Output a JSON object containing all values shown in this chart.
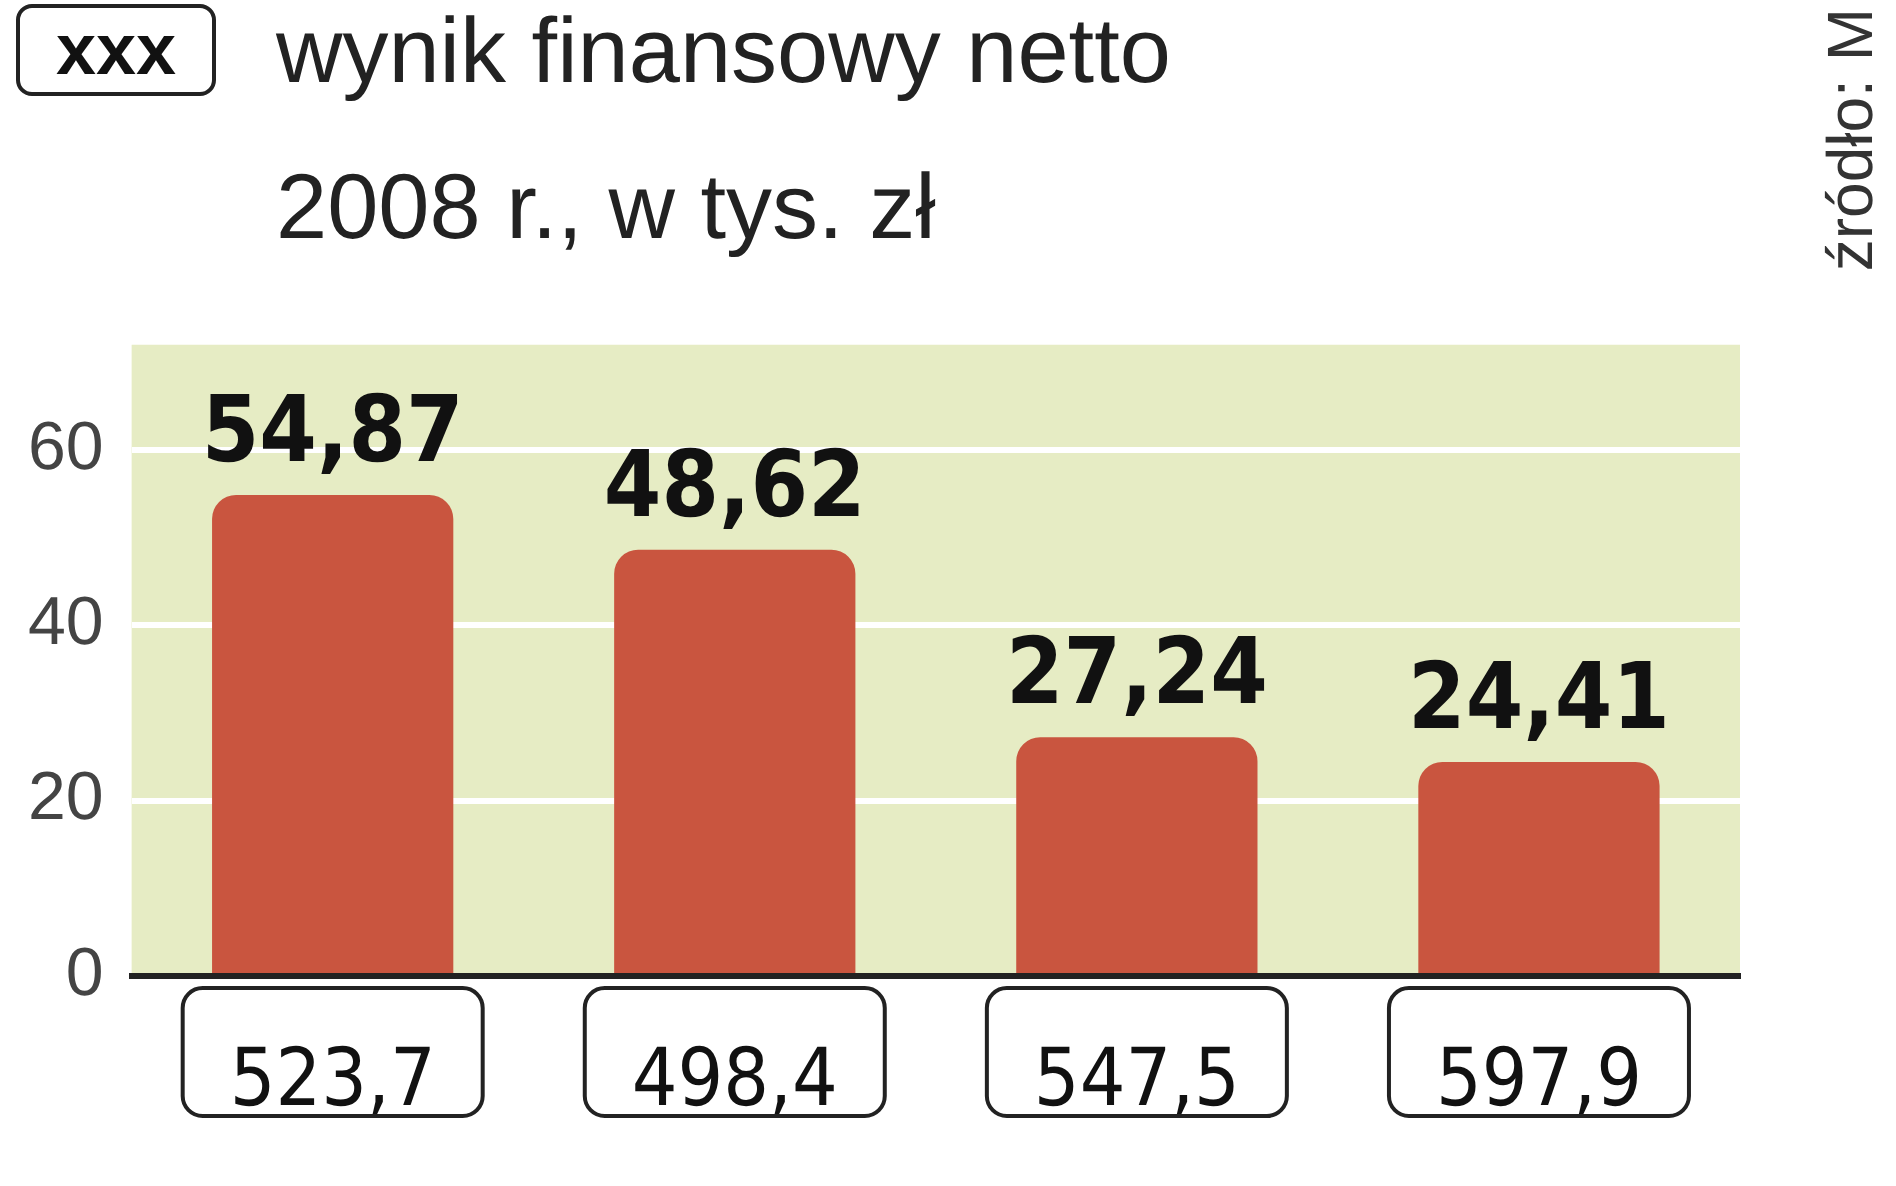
{
  "chart_data": {
    "type": "bar",
    "title": "wynik finansowy netto",
    "subtitle": "2008 r.,  w tys. zł",
    "legend_title": "xxx",
    "categories": [
      "523,7",
      "498,4",
      "547,5",
      "597,9"
    ],
    "values": [
      54.87,
      48.62,
      27.24,
      24.41
    ],
    "color": "#c9553f",
    "value_labels": [
      "54,87",
      "48,62",
      "27,24",
      "24,41"
    ],
    "ylim": [
      0,
      72
    ],
    "yticks": [
      0,
      20,
      40,
      60
    ],
    "grid": "y",
    "annotations": [
      "źródło: M"
    ]
  }
}
